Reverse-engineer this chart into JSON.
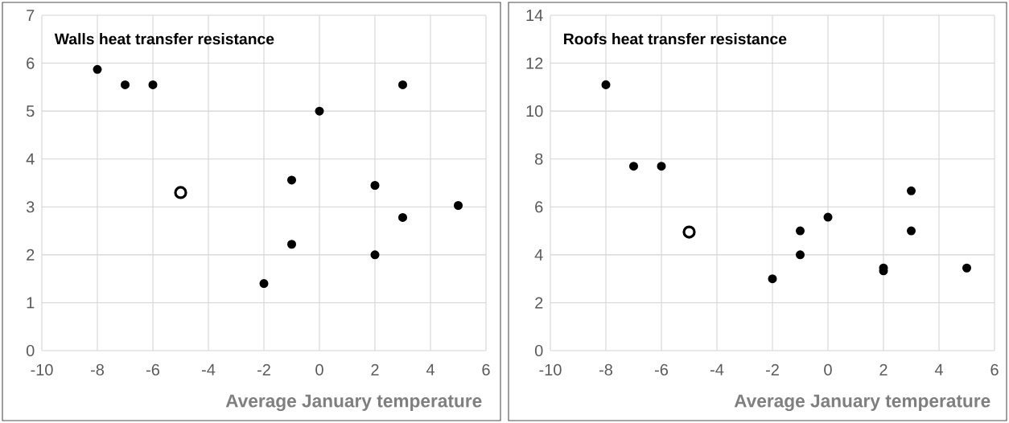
{
  "chart_data": [
    {
      "type": "scatter",
      "title": "Walls heat transfer resistance",
      "xlabel": "Average January temperature",
      "xlim": [
        -10,
        6
      ],
      "xticks": [
        -10,
        -8,
        -6,
        -4,
        -2,
        0,
        2,
        4,
        6
      ],
      "ylim": [
        0,
        7
      ],
      "yticks": [
        0,
        1,
        2,
        3,
        4,
        5,
        6,
        7
      ],
      "grid": true,
      "series": [
        {
          "color": "#000000",
          "x": [
            -8,
            -7,
            -6,
            0,
            3,
            -1,
            2,
            3,
            5,
            -1,
            2,
            -2
          ],
          "values": [
            5.87,
            5.55,
            5.55,
            5.0,
            5.55,
            3.56,
            3.45,
            2.78,
            3.03,
            2.22,
            2.0,
            1.4
          ]
        },
        {
          "color": "#ffffff",
          "x": [
            -5
          ],
          "values": [
            3.3
          ]
        }
      ]
    },
    {
      "type": "scatter",
      "title": "Roofs heat transfer resistance",
      "xlabel": "Average January temperature",
      "xlim": [
        -10,
        6
      ],
      "xticks": [
        -10,
        -8,
        -6,
        -4,
        -2,
        0,
        2,
        4,
        6
      ],
      "ylim": [
        0,
        14
      ],
      "yticks": [
        0,
        2,
        4,
        6,
        8,
        10,
        12,
        14
      ],
      "grid": true,
      "series": [
        {
          "color": "#000000",
          "x": [
            -8,
            -7,
            -6,
            -1,
            0,
            3,
            3,
            -1,
            -2,
            2,
            2,
            5
          ],
          "values": [
            11.1,
            7.7,
            7.7,
            5.0,
            5.57,
            6.67,
            5.0,
            4.0,
            3.0,
            3.45,
            3.33,
            3.45
          ]
        },
        {
          "color": "#ffffff",
          "x": [
            -5
          ],
          "values": [
            4.95
          ]
        }
      ]
    }
  ]
}
